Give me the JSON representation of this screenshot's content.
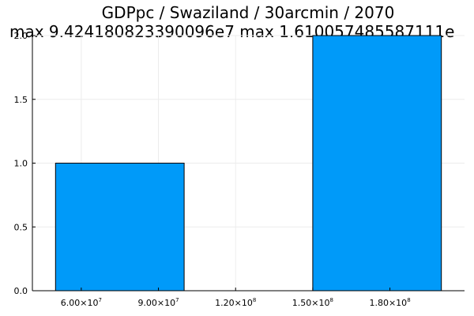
{
  "title_line1": "GDPpc / Swaziland / 30arcmin / 2070",
  "title_line2": "max 9.424180823390096e7  max 1.610057485587111e",
  "chart_data": {
    "type": "bar",
    "title": "GDPpc / Swaziland / 30arcmin / 2070",
    "subtitle": "max 9.424180823390096e7  max 1.610057485587111e",
    "xlabel": "",
    "ylabel": "",
    "bins": [
      {
        "x_start": 50000000,
        "x_end": 100000000,
        "value": 1
      },
      {
        "x_start": 100000000,
        "x_end": 150000000,
        "value": 0
      },
      {
        "x_start": 150000000,
        "x_end": 200000000,
        "value": 2
      }
    ],
    "xlim": [
      41000000,
      209000000
    ],
    "ylim": [
      0,
      2
    ],
    "x_ticks": [
      {
        "value": 60000000,
        "mantissa": "6.00×10",
        "exp": "7"
      },
      {
        "value": 90000000,
        "mantissa": "9.00×10",
        "exp": "7"
      },
      {
        "value": 120000000,
        "mantissa": "1.20×10",
        "exp": "8"
      },
      {
        "value": 150000000,
        "mantissa": "1.50×10",
        "exp": "8"
      },
      {
        "value": 180000000,
        "mantissa": "1.80×10",
        "exp": "8"
      }
    ],
    "y_ticks": [
      {
        "value": 0,
        "label": "0.0"
      },
      {
        "value": 0.5,
        "label": "0.5"
      },
      {
        "value": 1,
        "label": "1.0"
      },
      {
        "value": 1.5,
        "label": "1.5"
      },
      {
        "value": 2,
        "label": "2.0"
      }
    ],
    "grid": true,
    "legend": "none",
    "colors": {
      "bar_fill": "#009af9",
      "bar_stroke": "#000000",
      "grid": "#ececec",
      "axis": "#000000"
    }
  }
}
